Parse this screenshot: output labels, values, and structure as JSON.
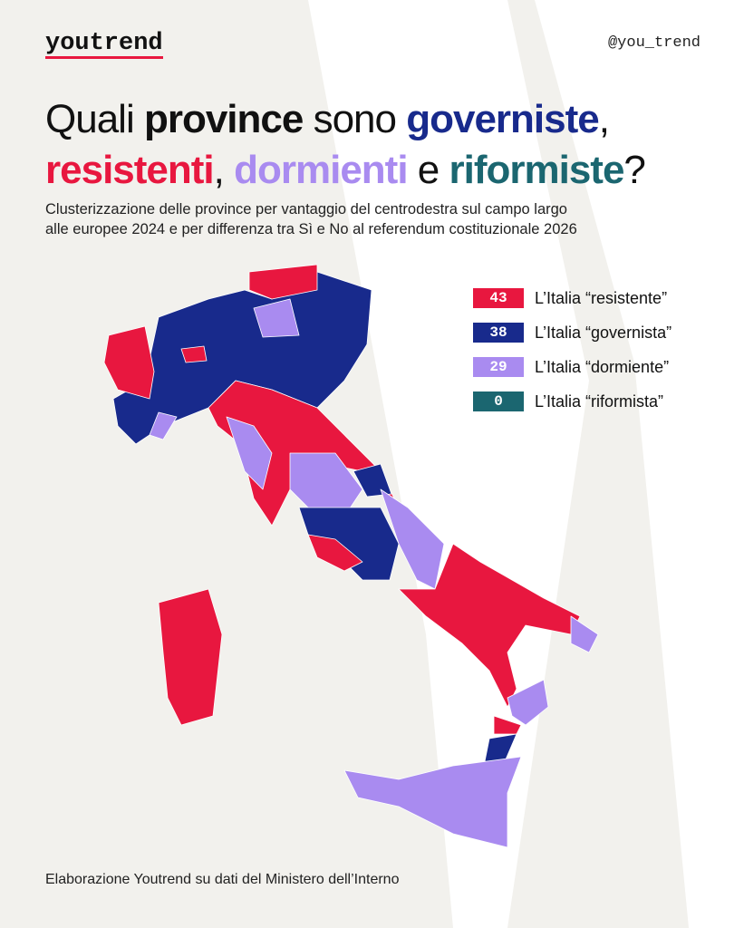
{
  "header": {
    "logo": "youtrend",
    "handle": "@you_trend"
  },
  "title": {
    "line1": [
      "Quali ",
      "province",
      " sono ",
      "governiste",
      ","
    ],
    "line2": [
      "resistenti",
      ", ",
      "dormienti",
      " e ",
      "riformiste",
      "?"
    ]
  },
  "subtitle": [
    "Clusterizzazione delle province per vantaggio del centrodestra sul campo largo",
    "alle europee 2024 e per differenza tra Sì e No al referendum costituzionale 2026"
  ],
  "legend": [
    {
      "count": 43,
      "label": "L’Italia “resistente”",
      "color": "#e8173f"
    },
    {
      "count": 38,
      "label": "L’Italia “governista”",
      "color": "#182a8c"
    },
    {
      "count": 29,
      "label": "L’Italia “dormiente”",
      "color": "#a98bf0"
    },
    {
      "count": 0,
      "label": "L’Italia “riformista”",
      "color": "#1b6670"
    }
  ],
  "footer": "Elaborazione Youtrend su dati del Ministero dell’Interno"
}
